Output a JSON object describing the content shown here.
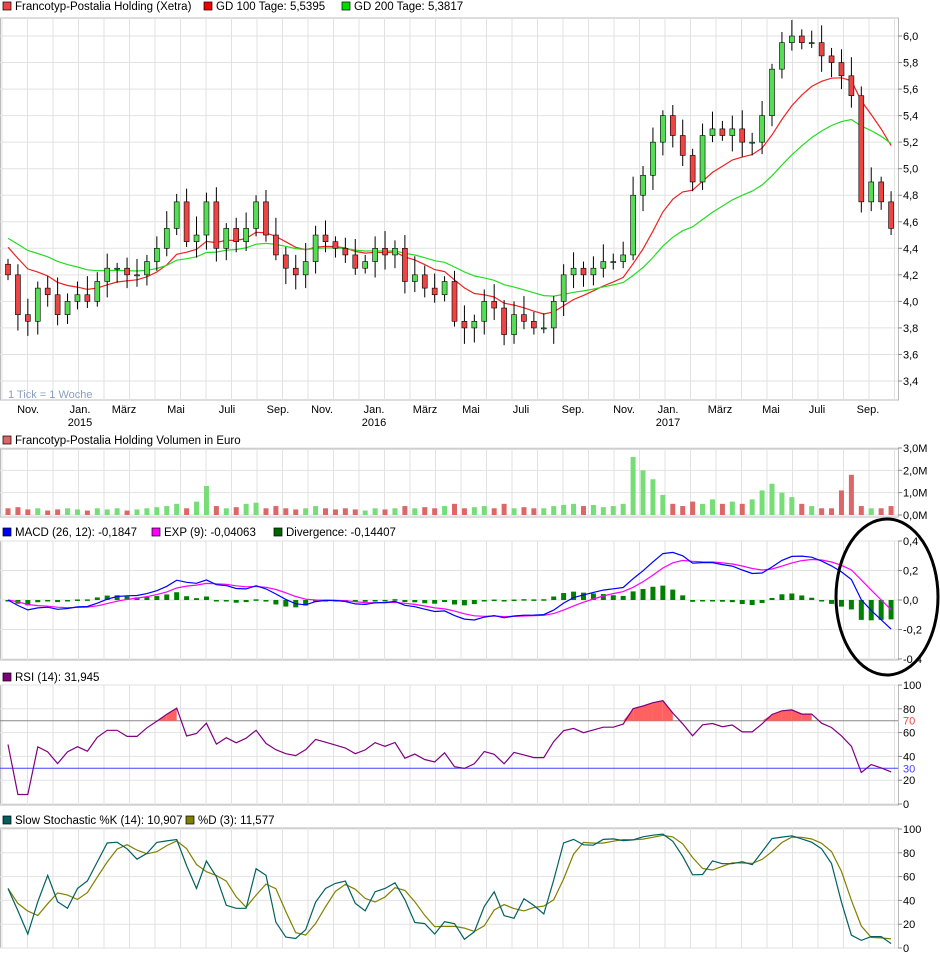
{
  "chart_data": [
    {
      "type": "candlestick",
      "title": "Francotyp-Postalia Holding (Xetra)",
      "legend": [
        {
          "label": "Francotyp-Postalia Holding (Xetra)",
          "color": "#ee4444"
        },
        {
          "label": "GD 100 Tage: 5,5395",
          "color": "#ee0000"
        },
        {
          "label": "GD 200 Tage: 5,3817",
          "color": "#00dd00"
        }
      ],
      "note": "1 Tick = 1 Woche",
      "x_tick_labels": [
        "Nov.",
        "Jan.",
        "März",
        "Mai",
        "Juli",
        "Sep.",
        "Nov.",
        "Jan.",
        "März",
        "Mai",
        "Juli",
        "Sep.",
        "Nov.",
        "Jan.",
        "März",
        "Mai",
        "Juli",
        "Sep."
      ],
      "year_labels": [
        {
          "after_tick": 1,
          "label": "2015"
        },
        {
          "after_tick": 7,
          "label": "2016"
        },
        {
          "after_tick": 13,
          "label": "2017"
        }
      ],
      "y_tick_labels": [
        "6,0",
        "5,8",
        "5,6",
        "5,4",
        "5,2",
        "5,0",
        "4,8",
        "4,6",
        "4,4",
        "4,2",
        "4,0",
        "3,8",
        "3,6",
        "3,4"
      ],
      "ylim": [
        3.4,
        6.0
      ],
      "close": [
        4.2,
        3.9,
        3.85,
        4.1,
        4.05,
        3.9,
        4.0,
        4.05,
        4.0,
        4.15,
        4.25,
        4.25,
        4.2,
        4.2,
        4.3,
        4.4,
        4.55,
        4.75,
        4.45,
        4.5,
        4.75,
        4.4,
        4.55,
        4.45,
        4.55,
        4.75,
        4.5,
        4.35,
        4.25,
        4.2,
        4.3,
        4.5,
        4.45,
        4.4,
        4.35,
        4.25,
        4.3,
        4.4,
        4.35,
        4.4,
        4.15,
        4.2,
        4.1,
        4.05,
        4.15,
        3.85,
        3.8,
        3.85,
        4.0,
        3.95,
        3.75,
        3.9,
        3.85,
        3.8,
        3.8,
        4.0,
        4.2,
        4.25,
        4.2,
        4.25,
        4.3,
        4.3,
        4.35,
        4.8,
        4.95,
        5.2,
        5.4,
        5.25,
        5.1,
        4.9,
        5.25,
        5.3,
        5.25,
        5.3,
        5.2,
        5.2,
        5.4,
        5.75,
        5.95,
        6.0,
        5.95,
        5.95,
        5.85,
        5.8,
        5.7,
        5.55,
        4.75,
        4.9,
        4.75,
        4.55
      ],
      "colors": {
        "up": "#55dd55",
        "down": "#ee4444",
        "gd100": "#ee2222",
        "gd200": "#22dd22"
      }
    },
    {
      "type": "bar",
      "legend": [
        {
          "label": "Francotyp-Postalia Holding Volumen in Euro",
          "color": "#dd6666"
        }
      ],
      "y_tick_labels": [
        "3,0M",
        "2,0M",
        "1,0M",
        "0,0M"
      ],
      "ylim": [
        0,
        3.0
      ],
      "unit": "M",
      "values": [
        0.3,
        0.35,
        0.25,
        0.3,
        0.2,
        0.25,
        0.3,
        0.25,
        0.2,
        0.3,
        0.25,
        0.3,
        0.2,
        0.25,
        0.3,
        0.35,
        0.4,
        0.5,
        0.3,
        0.6,
        1.3,
        0.4,
        0.3,
        0.35,
        0.5,
        0.55,
        0.3,
        0.4,
        0.3,
        0.25,
        0.3,
        0.4,
        0.3,
        0.25,
        0.3,
        0.25,
        0.2,
        0.3,
        0.25,
        0.3,
        0.4,
        0.3,
        0.35,
        0.3,
        0.4,
        0.5,
        0.3,
        0.35,
        0.4,
        0.3,
        0.5,
        0.3,
        0.35,
        0.3,
        0.3,
        0.4,
        0.45,
        0.5,
        0.4,
        0.45,
        0.35,
        0.4,
        0.5,
        2.6,
        2.0,
        1.6,
        0.9,
        0.5,
        0.4,
        0.6,
        0.5,
        0.7,
        0.5,
        0.6,
        0.5,
        0.7,
        1.1,
        1.4,
        1.0,
        0.8,
        0.5,
        0.4,
        0.3,
        0.3,
        1.1,
        1.8,
        0.4,
        0.3,
        0.3,
        0.4
      ],
      "colors": {
        "up": "#77dd77",
        "down": "#dd6666"
      }
    },
    {
      "type": "line",
      "legend": [
        {
          "label": "MACD (26, 12): -0,1847",
          "color": "#0000ff"
        },
        {
          "label": "EXP (9): -0,04063",
          "color": "#ff00ff"
        },
        {
          "label": "Divergence: -0,14407",
          "color": "#006600"
        }
      ],
      "y_tick_labels": [
        "0,4",
        "0,2",
        "0,0",
        "-0,2",
        "-0,4"
      ],
      "ylim": [
        -0.4,
        0.4
      ],
      "annotation": "ellipse around latest divergence"
    },
    {
      "type": "line",
      "legend": [
        {
          "label": "RSI (14): 31,945",
          "color": "#800080"
        }
      ],
      "y_tick_labels": [
        "100",
        "80",
        "60",
        "40",
        "20",
        "0"
      ],
      "levels": [
        {
          "value": 70,
          "label": "70",
          "color": "#ee4444"
        },
        {
          "value": 30,
          "label": "30",
          "color": "#4444ff"
        }
      ],
      "ylim": [
        0,
        100
      ]
    },
    {
      "type": "line",
      "legend": [
        {
          "label": "Slow Stochastic %K (14): 10,907",
          "color": "#006060"
        },
        {
          "label": "%D (3): 11,577",
          "color": "#808000"
        }
      ],
      "y_tick_labels": [
        "100",
        "80",
        "60",
        "40",
        "20",
        "0"
      ],
      "ylim": [
        0,
        100
      ]
    }
  ]
}
